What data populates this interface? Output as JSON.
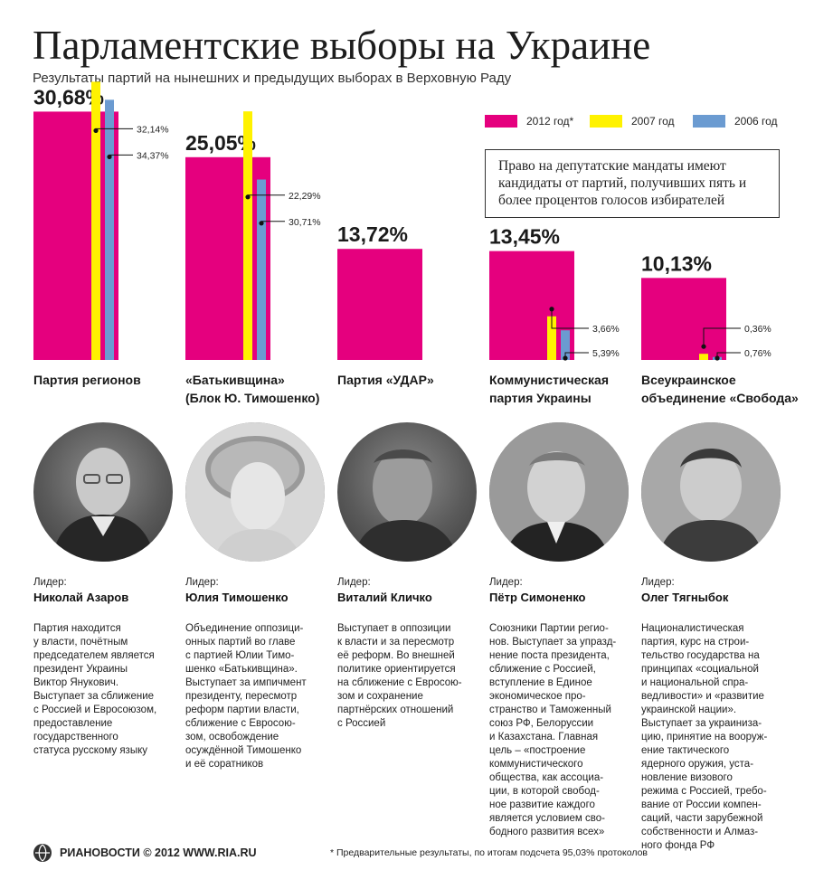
{
  "header": {
    "title": "Парламентские выборы на Украине",
    "subtitle": "Результаты партий на нынешних и предыдущих выборах в Верховную Раду"
  },
  "colors": {
    "y2012": "#e5007e",
    "y2007": "#fff200",
    "y2006": "#6b9bd1"
  },
  "legend": [
    {
      "label": "2012 год*",
      "color": "#e5007e"
    },
    {
      "label": "2007 год",
      "color": "#fff200"
    },
    {
      "label": "2006 год",
      "color": "#6b9bd1"
    }
  ],
  "note": "Право на депутатские мандаты имеют кандидаты от партий, получивших пять и более процентов голосов избирателей",
  "chart_data": {
    "type": "bar",
    "categories": [
      "Партия регионов",
      "«Батькивщина» (Блок Ю. Тимошенко)",
      "Партия «УДАР»",
      "Коммунистическая партия Украины",
      "Всеукраинское объединение «Свобода»"
    ],
    "series": [
      {
        "name": "2012 год*",
        "values": [
          30.68,
          25.05,
          13.72,
          13.45,
          10.13
        ],
        "labels": [
          "30,68%",
          "25,05%",
          "13,72%",
          "13,45%",
          "10,13%"
        ]
      },
      {
        "name": "2007 год",
        "values": [
          34.37,
          30.71,
          null,
          5.39,
          0.76
        ],
        "labels": [
          "34,37%",
          "30,71%",
          "",
          "5,39%",
          "0,76%"
        ]
      },
      {
        "name": "2006 год",
        "values": [
          32.14,
          22.29,
          null,
          3.66,
          0.36
        ],
        "labels": [
          "32,14%",
          "22,29%",
          "",
          "3,66%",
          "0,36%"
        ]
      }
    ],
    "title": "Парламентские выборы на Украине",
    "subtitle": "Результаты партий на нынешних и предыдущих выборах в Верховную Раду",
    "xlabel": "",
    "ylabel": "",
    "ylim": [
      0,
      35
    ],
    "grid": false,
    "legend": "top-right"
  },
  "parties": [
    {
      "label_lines": [
        "Партия регионов"
      ],
      "leader_caption": "Лидер:",
      "leader_name": "Николай Азаров",
      "photo": "portrait-photo",
      "description": "Партия находится\nу власти, почётным\nпредседателем является\nпрезидент Украины\nВиктор Янукович.\nВыступает за сближение\nс Россией и Евросоюзом,\nпредоставление\nгосударственного\nстатуса русскому языку"
    },
    {
      "label_lines": [
        "«Батькивщина»",
        "(Блок Ю. Тимошенко)"
      ],
      "leader_caption": "Лидер:",
      "leader_name": "Юлия Тимошенко",
      "photo": "portrait-photo",
      "description": "Объединение оппозици-\nонных партий во главе\nс партией Юлии Тимо-\nшенко «Батькивщина».\nВыступает за импичмент\nпрезиденту, пересмотр\nреформ партии власти,\nсближение с Евросою-\nзом, освобождение\nосуждённой Тимошенко\nи её соратников"
    },
    {
      "label_lines": [
        "Партия «УДАР»"
      ],
      "leader_caption": "Лидер:",
      "leader_name": "Виталий Кличко",
      "photo": "portrait-photo",
      "description": "Выступает в оппозиции\nк власти и за пересмотр\nеё реформ. Во внешней\nполитике ориентируется\nна сближение с Евросою-\nзом и сохранение\nпартнёрских отношений\nс Россией"
    },
    {
      "label_lines": [
        "Коммунистическая",
        "партия Украины"
      ],
      "leader_caption": "Лидер:",
      "leader_name": "Пётр Симоненко",
      "photo": "portrait-photo",
      "description": "Союзники Партии регио-\nнов. Выступает за упразд-\nнение поста президента,\nсближение с Россией,\nвступление в Единое\nэкономическое про-\nстранство и Таможенный\nсоюз РФ, Белоруссии\nи Казахстана. Главная\nцель – «построение\nкоммунистического\nобщества,  как ассоциа-\nции, в которой свобод-\nное развитие каждого\nявляется условием сво-\nбодного  развития всех»"
    },
    {
      "label_lines": [
        "Всеукраинское",
        "объединение «Свобода»"
      ],
      "leader_caption": "Лидер:",
      "leader_name": "Олег Тягныбок",
      "photo": "portrait-photo",
      "description": "Националистическая\nпартия, курс на строи-\nтельство государства на\nпринципах «социальной\nи национальной спра-\nведливости» и «развитие\nукраинской нации».\nВыступает за украиниза-\nцию, принятие на вооруж-\nение тактического\nядерного оружия, уста-\nновление визового\nрежима с Россией, требо-\nвание от России компен-\nсаций, части зарубежной\nсобственности и Алмаз-\nного фонда РФ"
    }
  ],
  "footer": {
    "logo_text": "РИАНОВОСТИ © 2012 WWW.RIA.RU",
    "footnote": "* Предварительные результаты, по итогам подсчета 95,03% протоколов"
  }
}
